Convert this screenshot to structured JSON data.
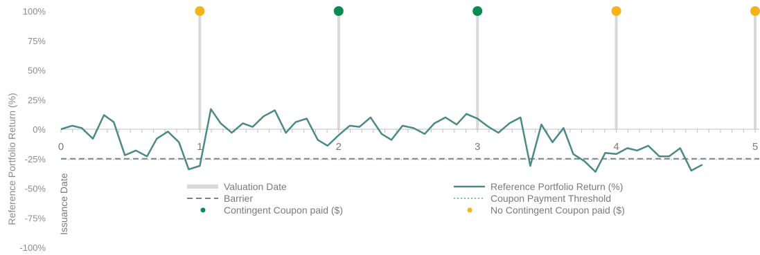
{
  "chart_data": {
    "type": "line",
    "ylabel": "Reference Portfolio Return (%)",
    "xlabel": "",
    "ylim": [
      -100,
      100
    ],
    "xlim": [
      0,
      5
    ],
    "yticks": [
      "100%",
      "75%",
      "50%",
      "25%",
      "0%",
      "-25%",
      "-50%",
      "-75%",
      "-100%"
    ],
    "ytick_values": [
      100,
      75,
      50,
      25,
      0,
      -25,
      -50,
      -75,
      -100
    ],
    "xticks": [
      "0",
      "1",
      "2",
      "3",
      "4",
      "5"
    ],
    "xtick_values": [
      0,
      1,
      2,
      3,
      4,
      5
    ],
    "issuance_label": "Issuance Date",
    "barrier": -25,
    "coupon_threshold": -25,
    "series": [
      {
        "name": "Reference Portfolio Return (%)",
        "color": "#4a8a85",
        "points": [
          [
            0,
            0
          ],
          [
            0.08,
            3
          ],
          [
            0.15,
            1
          ],
          [
            0.23,
            -8
          ],
          [
            0.31,
            12
          ],
          [
            0.38,
            6
          ],
          [
            0.46,
            -22
          ],
          [
            0.54,
            -18
          ],
          [
            0.62,
            -23
          ],
          [
            0.69,
            -8
          ],
          [
            0.77,
            -2
          ],
          [
            0.85,
            -11
          ],
          [
            0.92,
            -34
          ],
          [
            1.0,
            -31
          ],
          [
            1.08,
            17
          ],
          [
            1.15,
            5
          ],
          [
            1.23,
            -3
          ],
          [
            1.31,
            5
          ],
          [
            1.38,
            2
          ],
          [
            1.46,
            11
          ],
          [
            1.54,
            16
          ],
          [
            1.62,
            -3
          ],
          [
            1.69,
            6
          ],
          [
            1.77,
            9
          ],
          [
            1.85,
            -9
          ],
          [
            1.92,
            -14
          ],
          [
            2.0,
            -5
          ],
          [
            2.08,
            3
          ],
          [
            2.15,
            2
          ],
          [
            2.23,
            10
          ],
          [
            2.31,
            -4
          ],
          [
            2.38,
            -9
          ],
          [
            2.46,
            3
          ],
          [
            2.54,
            1
          ],
          [
            2.62,
            -4
          ],
          [
            2.69,
            5
          ],
          [
            2.77,
            10
          ],
          [
            2.85,
            4
          ],
          [
            2.92,
            13
          ],
          [
            3.0,
            9
          ],
          [
            3.08,
            2
          ],
          [
            3.15,
            -3
          ],
          [
            3.23,
            5
          ],
          [
            3.31,
            10
          ],
          [
            3.38,
            -31
          ],
          [
            3.46,
            4
          ],
          [
            3.54,
            -11
          ],
          [
            3.62,
            1
          ],
          [
            3.69,
            -21
          ],
          [
            3.77,
            -27
          ],
          [
            3.85,
            -36
          ],
          [
            3.92,
            -20
          ],
          [
            4.0,
            -21
          ],
          [
            4.08,
            -16
          ],
          [
            4.15,
            -18
          ],
          [
            4.23,
            -14
          ],
          [
            4.31,
            -23
          ],
          [
            4.38,
            -23
          ],
          [
            4.46,
            -16
          ],
          [
            4.54,
            -35
          ],
          [
            4.62,
            -30
          ]
        ]
      }
    ],
    "valuation_dates": [
      {
        "x": 1,
        "coupon_paid": false
      },
      {
        "x": 2,
        "coupon_paid": true
      },
      {
        "x": 3,
        "coupon_paid": true
      },
      {
        "x": 4,
        "coupon_paid": false
      },
      {
        "x": 5,
        "coupon_paid": false
      }
    ],
    "colors": {
      "line": "#4a8a85",
      "barrier": "#7f7f7f",
      "threshold": "#79b7c4",
      "valuation": "#d9d9d9",
      "coupon_paid": "#0a8a52",
      "no_coupon": "#f5b319",
      "axis": "#bfbfbf",
      "text": "#8c8c8c"
    },
    "legend": {
      "position": "bottom",
      "items": [
        {
          "label": "Valuation Date",
          "style": "valuation"
        },
        {
          "label": "Reference Portfolio Return (%)",
          "style": "line"
        },
        {
          "label": "Barrier",
          "style": "barrier"
        },
        {
          "label": "Coupon Payment Threshold",
          "style": "threshold"
        },
        {
          "label": "Contingent Coupon paid ($)",
          "style": "coupon_paid"
        },
        {
          "label": "No Contingent Coupon paid  ($)",
          "style": "no_coupon"
        }
      ]
    }
  }
}
